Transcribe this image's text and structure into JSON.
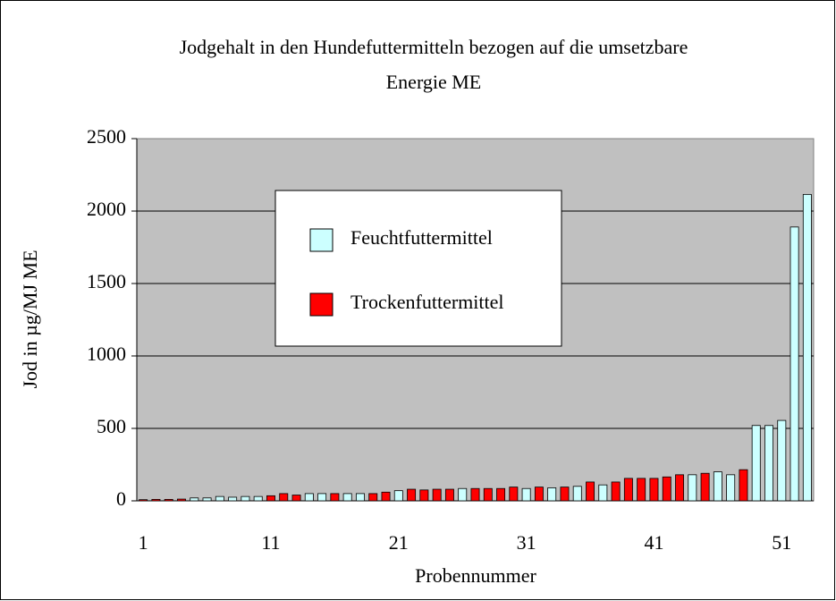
{
  "chart_data": {
    "type": "bar",
    "title": [
      "Jodgehalt in den Hundefuttermitteln bezogen auf die umsetzbare",
      "Energie ME"
    ],
    "y_label": "Jod in µg/MJ ME",
    "x_label": "Probennummer",
    "categories": [
      "1",
      null,
      null,
      null,
      null,
      null,
      null,
      null,
      null,
      null,
      "11",
      null,
      null,
      null,
      null,
      null,
      null,
      null,
      null,
      null,
      "21",
      null,
      null,
      null,
      null,
      null,
      null,
      null,
      null,
      null,
      "31",
      null,
      null,
      null,
      null,
      null,
      null,
      null,
      null,
      null,
      "41",
      null,
      null,
      null,
      null,
      null,
      null,
      null,
      null,
      null,
      "51",
      null,
      null
    ],
    "series": [
      {
        "name": "Feuchtfuttermittel",
        "color": "#ccffff",
        "values": [
          null,
          null,
          null,
          null,
          20,
          20,
          30,
          25,
          30,
          30,
          null,
          null,
          null,
          50,
          50,
          null,
          50,
          50,
          null,
          null,
          70,
          null,
          null,
          null,
          null,
          85,
          null,
          null,
          null,
          null,
          85,
          null,
          90,
          null,
          100,
          null,
          110,
          null,
          null,
          null,
          null,
          null,
          null,
          180,
          null,
          200,
          180,
          null,
          520,
          520,
          555,
          1890,
          2115
        ]
      },
      {
        "name": "Trockenfuttermittel",
        "color": "#ff0000",
        "values": [
          8,
          10,
          10,
          12,
          null,
          null,
          null,
          null,
          null,
          null,
          35,
          50,
          40,
          null,
          null,
          50,
          null,
          null,
          50,
          60,
          null,
          80,
          75,
          80,
          80,
          null,
          85,
          85,
          85,
          95,
          null,
          95,
          null,
          95,
          null,
          130,
          null,
          130,
          155,
          155,
          155,
          165,
          180,
          null,
          190,
          null,
          null,
          215,
          null,
          null,
          null,
          null,
          null
        ]
      }
    ],
    "ylim": [
      0,
      2500
    ],
    "yticks": [
      0,
      500,
      1000,
      1500,
      2000,
      2500
    ],
    "grid": true
  }
}
